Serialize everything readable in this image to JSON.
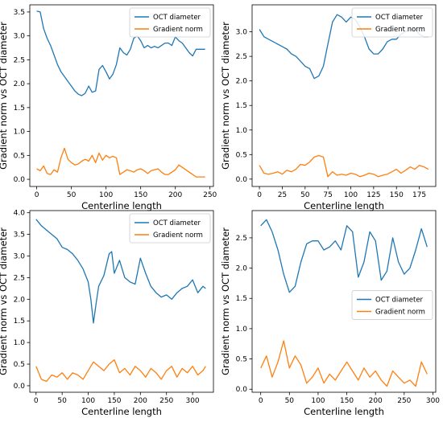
{
  "colors": {
    "oct": "#1f77b4",
    "grad": "#ff7f0e",
    "axis": "#000000"
  },
  "chart_data": [
    {
      "type": "line",
      "xlabel": "Centerline length",
      "ylabel": "Gradient norm vs OCT diameter",
      "xlim": [
        -10,
        255
      ],
      "ylim": [
        -0.15,
        3.65
      ],
      "xticks": [
        0,
        50,
        100,
        150,
        200,
        250
      ],
      "yticks": [
        0.0,
        0.5,
        1.0,
        1.5,
        2.0,
        2.5,
        3.0,
        3.5
      ],
      "legend": "top-right",
      "grid": false,
      "series": [
        {
          "name": "OCT diameter",
          "color": "#1f77b4",
          "x": [
            0,
            5,
            10,
            15,
            20,
            25,
            30,
            35,
            40,
            45,
            50,
            55,
            60,
            65,
            70,
            75,
            80,
            85,
            90,
            95,
            100,
            105,
            110,
            115,
            120,
            125,
            130,
            135,
            140,
            145,
            150,
            155,
            160,
            165,
            170,
            175,
            180,
            185,
            190,
            195,
            200,
            205,
            210,
            215,
            220,
            225,
            230,
            235,
            240,
            243
          ],
          "values": [
            3.52,
            3.5,
            3.15,
            2.95,
            2.8,
            2.6,
            2.4,
            2.25,
            2.15,
            2.05,
            1.95,
            1.85,
            1.78,
            1.75,
            1.8,
            1.95,
            1.82,
            1.85,
            2.3,
            2.38,
            2.25,
            2.1,
            2.2,
            2.4,
            2.75,
            2.65,
            2.6,
            2.72,
            2.95,
            3.0,
            2.9,
            2.75,
            2.8,
            2.75,
            2.78,
            2.75,
            2.8,
            2.85,
            2.85,
            2.8,
            2.98,
            2.9,
            2.85,
            2.75,
            2.65,
            2.58,
            2.72,
            2.72,
            2.72,
            2.72
          ]
        },
        {
          "name": "Gradient norm",
          "color": "#ff7f0e",
          "x": [
            0,
            5,
            10,
            15,
            20,
            25,
            30,
            35,
            40,
            45,
            50,
            55,
            60,
            65,
            70,
            75,
            80,
            85,
            90,
            95,
            100,
            105,
            110,
            115,
            120,
            125,
            130,
            135,
            140,
            145,
            150,
            155,
            160,
            165,
            170,
            175,
            180,
            185,
            190,
            195,
            200,
            205,
            210,
            215,
            220,
            225,
            230,
            235,
            240,
            243
          ],
          "values": [
            0.22,
            0.18,
            0.28,
            0.12,
            0.1,
            0.2,
            0.15,
            0.45,
            0.65,
            0.42,
            0.35,
            0.3,
            0.32,
            0.38,
            0.42,
            0.38,
            0.5,
            0.35,
            0.55,
            0.4,
            0.5,
            0.45,
            0.48,
            0.45,
            0.1,
            0.15,
            0.2,
            0.18,
            0.15,
            0.2,
            0.22,
            0.18,
            0.12,
            0.18,
            0.2,
            0.22,
            0.15,
            0.1,
            0.1,
            0.15,
            0.2,
            0.3,
            0.25,
            0.2,
            0.15,
            0.1,
            0.05,
            0.05,
            0.05,
            0.05
          ]
        }
      ]
    },
    {
      "type": "line",
      "xlabel": "Centerline length",
      "ylabel": "Gradient norm vs OCT diameter",
      "xlim": [
        -8,
        193
      ],
      "ylim": [
        -0.15,
        3.55
      ],
      "xticks": [
        0,
        25,
        50,
        75,
        100,
        125,
        150,
        175
      ],
      "yticks": [
        0.0,
        0.5,
        1.0,
        1.5,
        2.0,
        2.5,
        3.0
      ],
      "legend": "top-right",
      "grid": false,
      "series": [
        {
          "name": "OCT diameter",
          "color": "#1f77b4",
          "x": [
            0,
            5,
            10,
            15,
            20,
            25,
            30,
            35,
            40,
            45,
            50,
            55,
            60,
            65,
            70,
            75,
            80,
            85,
            90,
            95,
            100,
            105,
            110,
            115,
            120,
            125,
            130,
            135,
            140,
            145,
            150,
            155,
            160,
            165,
            170,
            175,
            180,
            185
          ],
          "values": [
            3.05,
            2.9,
            2.85,
            2.8,
            2.75,
            2.7,
            2.65,
            2.55,
            2.5,
            2.4,
            2.3,
            2.25,
            2.05,
            2.1,
            2.3,
            2.75,
            3.2,
            3.35,
            3.3,
            3.2,
            3.3,
            3.25,
            3.1,
            2.9,
            2.65,
            2.55,
            2.55,
            2.65,
            2.8,
            2.85,
            2.85,
            2.95,
            3.0,
            3.05,
            3.05,
            2.95,
            2.9,
            2.9
          ]
        },
        {
          "name": "Gradient norm",
          "color": "#ff7f0e",
          "x": [
            0,
            5,
            10,
            15,
            20,
            25,
            30,
            35,
            40,
            45,
            50,
            55,
            60,
            65,
            70,
            75,
            80,
            85,
            90,
            95,
            100,
            105,
            110,
            115,
            120,
            125,
            130,
            135,
            140,
            145,
            150,
            155,
            160,
            165,
            170,
            175,
            180,
            185
          ],
          "values": [
            0.28,
            0.12,
            0.1,
            0.12,
            0.15,
            0.1,
            0.18,
            0.15,
            0.2,
            0.3,
            0.28,
            0.35,
            0.45,
            0.48,
            0.45,
            0.05,
            0.15,
            0.08,
            0.1,
            0.08,
            0.12,
            0.1,
            0.05,
            0.08,
            0.12,
            0.1,
            0.05,
            0.08,
            0.1,
            0.15,
            0.2,
            0.12,
            0.18,
            0.25,
            0.2,
            0.28,
            0.25,
            0.2
          ]
        }
      ]
    },
    {
      "type": "line",
      "xlabel": "Centerline length",
      "ylabel": "Gradient norm vs OCT diameter",
      "xlim": [
        -12,
        340
      ],
      "ylim": [
        -0.15,
        4.05
      ],
      "xticks": [
        0,
        50,
        100,
        150,
        200,
        250,
        300
      ],
      "yticks": [
        0.0,
        0.5,
        1.0,
        1.5,
        2.0,
        2.5,
        3.0,
        3.5,
        4.0
      ],
      "legend": "top-right",
      "grid": false,
      "series": [
        {
          "name": "OCT diameter",
          "color": "#1f77b4",
          "x": [
            0,
            10,
            20,
            30,
            40,
            50,
            60,
            70,
            80,
            90,
            100,
            105,
            110,
            115,
            120,
            130,
            140,
            145,
            150,
            160,
            170,
            180,
            190,
            200,
            210,
            220,
            230,
            240,
            250,
            260,
            270,
            280,
            290,
            300,
            310,
            320,
            325
          ],
          "values": [
            3.85,
            3.7,
            3.6,
            3.5,
            3.4,
            3.2,
            3.15,
            3.05,
            2.9,
            2.7,
            2.4,
            2.0,
            1.45,
            1.9,
            2.3,
            2.55,
            3.05,
            3.1,
            2.6,
            2.9,
            2.5,
            2.4,
            2.35,
            2.95,
            2.6,
            2.3,
            2.15,
            2.05,
            2.1,
            2.0,
            2.15,
            2.25,
            2.3,
            2.45,
            2.15,
            2.3,
            2.25
          ]
        },
        {
          "name": "Gradient norm",
          "color": "#ff7f0e",
          "x": [
            0,
            10,
            20,
            30,
            40,
            50,
            60,
            70,
            80,
            90,
            100,
            110,
            120,
            130,
            140,
            150,
            160,
            170,
            180,
            190,
            200,
            210,
            220,
            230,
            240,
            250,
            260,
            270,
            280,
            290,
            300,
            310,
            320,
            325
          ],
          "values": [
            0.45,
            0.15,
            0.1,
            0.25,
            0.2,
            0.3,
            0.15,
            0.3,
            0.25,
            0.15,
            0.35,
            0.55,
            0.45,
            0.35,
            0.5,
            0.6,
            0.3,
            0.4,
            0.25,
            0.45,
            0.35,
            0.2,
            0.4,
            0.3,
            0.15,
            0.35,
            0.45,
            0.2,
            0.4,
            0.3,
            0.45,
            0.25,
            0.35,
            0.45
          ]
        }
      ]
    },
    {
      "type": "line",
      "xlabel": "Centerline length",
      "ylabel": "Gradient norm vs OCT diameter",
      "xlim": [
        -15,
        305
      ],
      "ylim": [
        -0.05,
        2.95
      ],
      "xticks": [
        0,
        50,
        100,
        150,
        200,
        250,
        300
      ],
      "yticks": [
        0.0,
        0.5,
        1.0,
        1.5,
        2.0,
        2.5
      ],
      "legend": "center-right",
      "grid": false,
      "series": [
        {
          "name": "OCT diameter",
          "color": "#1f77b4",
          "x": [
            0,
            10,
            20,
            30,
            40,
            50,
            60,
            70,
            80,
            90,
            100,
            110,
            120,
            130,
            140,
            150,
            160,
            170,
            180,
            190,
            200,
            210,
            220,
            230,
            240,
            250,
            260,
            270,
            280,
            290
          ],
          "values": [
            2.7,
            2.8,
            2.6,
            2.3,
            1.9,
            1.6,
            1.7,
            2.1,
            2.4,
            2.45,
            2.45,
            2.3,
            2.35,
            2.45,
            2.3,
            2.7,
            2.6,
            1.85,
            2.1,
            2.6,
            2.45,
            1.8,
            1.95,
            2.5,
            2.1,
            1.9,
            2.0,
            2.3,
            2.65,
            2.35
          ]
        },
        {
          "name": "Gradient norm",
          "color": "#ff7f0e",
          "x": [
            0,
            10,
            20,
            30,
            40,
            50,
            60,
            70,
            80,
            90,
            100,
            110,
            120,
            130,
            140,
            150,
            160,
            170,
            180,
            190,
            200,
            210,
            220,
            230,
            240,
            250,
            260,
            270,
            280,
            290
          ],
          "values": [
            0.35,
            0.55,
            0.2,
            0.45,
            0.8,
            0.35,
            0.55,
            0.4,
            0.1,
            0.2,
            0.35,
            0.1,
            0.25,
            0.15,
            0.3,
            0.45,
            0.3,
            0.15,
            0.35,
            0.2,
            0.3,
            0.15,
            0.05,
            0.3,
            0.2,
            0.1,
            0.15,
            0.05,
            0.45,
            0.25
          ]
        }
      ]
    }
  ]
}
